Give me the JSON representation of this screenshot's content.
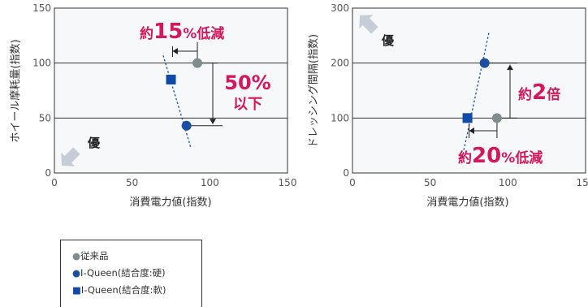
{
  "colors": {
    "series_conventional": "#7f8c8d",
    "series_hard": "#1a4ea2",
    "series_soft": "#0f4aa8",
    "accent": "#d6175d",
    "better_arrow": "#c5cdd6",
    "axis": "#333333"
  },
  "chart_data": [
    {
      "type": "scatter",
      "xlabel": "消費電力値(指数)",
      "ylabel": "ホイール摩耗量(指数)",
      "xlim": [
        0,
        150
      ],
      "ylim": [
        0,
        150
      ],
      "xticks": [
        0,
        50,
        100,
        150
      ],
      "yticks": [
        0,
        50,
        100,
        150
      ],
      "grid": "horizontal",
      "series": [
        {
          "name": "従来品",
          "marker": "circle",
          "color": "#7f8c8d",
          "points": [
            [
              92,
              100
            ]
          ]
        },
        {
          "name": "I-Queen(結合度:硬)",
          "marker": "circle",
          "color": "#1a4ea2",
          "points": [
            [
              85,
              43
            ]
          ]
        },
        {
          "name": "I-Queen(結合度:軟)",
          "marker": "square",
          "color": "#0f4aa8",
          "points": [
            [
              75,
              85
            ]
          ]
        }
      ],
      "trend_line": [
        [
          70,
          107
        ],
        [
          88,
          22
        ]
      ],
      "annotations": {
        "better_label": "優",
        "better_direction": "bottom-left",
        "callout_1": {
          "prefix": "約",
          "number": "15",
          "suffix": "%低減"
        },
        "callout_2": {
          "line1": "50%",
          "line2": "以下"
        }
      }
    },
    {
      "type": "scatter",
      "xlabel": "消費電力値(指数)",
      "ylabel": "ドレッシング間隔(指数)",
      "xlim": [
        0,
        150
      ],
      "ylim": [
        0,
        300
      ],
      "xticks": [
        0,
        50,
        100,
        150
      ],
      "yticks": [
        0,
        100,
        200,
        300
      ],
      "grid": "horizontal",
      "series": [
        {
          "name": "従来品",
          "marker": "circle",
          "color": "#7f8c8d",
          "points": [
            [
              93,
              100
            ]
          ]
        },
        {
          "name": "I-Queen(結合度:硬)",
          "marker": "circle",
          "color": "#1a4ea2",
          "points": [
            [
              85,
              200
            ]
          ]
        },
        {
          "name": "I-Queen(結合度:軟)",
          "marker": "square",
          "color": "#0f4aa8",
          "points": [
            [
              74,
              100
            ]
          ]
        }
      ],
      "trend_line": [
        [
          70,
          20
        ],
        [
          88,
          258
        ]
      ],
      "annotations": {
        "better_label": "優",
        "better_direction": "top-left",
        "callout_1": {
          "prefix": "約",
          "number": "2",
          "suffix": "倍"
        },
        "callout_2": {
          "prefix": "約",
          "number": "20",
          "suffix": "%低減"
        }
      }
    }
  ],
  "legend": {
    "items": [
      {
        "glyph": "●",
        "label": "従来品",
        "color": "#7f8c8d"
      },
      {
        "glyph": "●",
        "label": "I-Queen(結合度:硬)",
        "color": "#1a4ea2"
      },
      {
        "glyph": "■",
        "label": "I-Queen(結合度:軟)",
        "color": "#0f4aa8"
      }
    ]
  }
}
